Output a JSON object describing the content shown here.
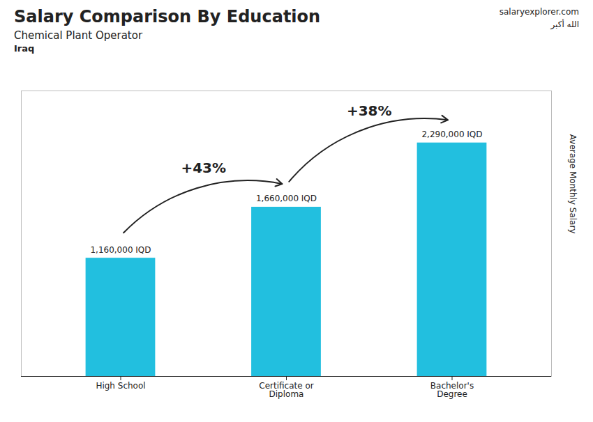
{
  "chart_data": {
    "type": "bar",
    "title": "Salary Comparison By Education",
    "subtitle": [
      "Chemical Plant Operator",
      "Iraq"
    ],
    "ylabel": "Average Monthly Salary",
    "categories": [
      "High School",
      "Certificate or\nDiploma",
      "Bachelor's\nDegree"
    ],
    "values": [
      1160000,
      1660000,
      2290000
    ],
    "value_labels": [
      "1,160,000 IQD",
      "1,660,000 IQD",
      "2,290,000 IQD"
    ],
    "data_labels": true,
    "color": "#22bfdf",
    "ylim": [
      0,
      2800000
    ],
    "tick_labels": "x",
    "annotations": [
      {
        "text": "+43%",
        "from": "High School",
        "to": "Certificate or\nDiploma"
      },
      {
        "text": "+38%",
        "from": "Certificate or\nDiploma",
        "to": "Bachelor's\nDegree"
      },
      {
        "text": "salaryexplorer.com"
      },
      {
        "text": "الله أكبر"
      }
    ]
  }
}
